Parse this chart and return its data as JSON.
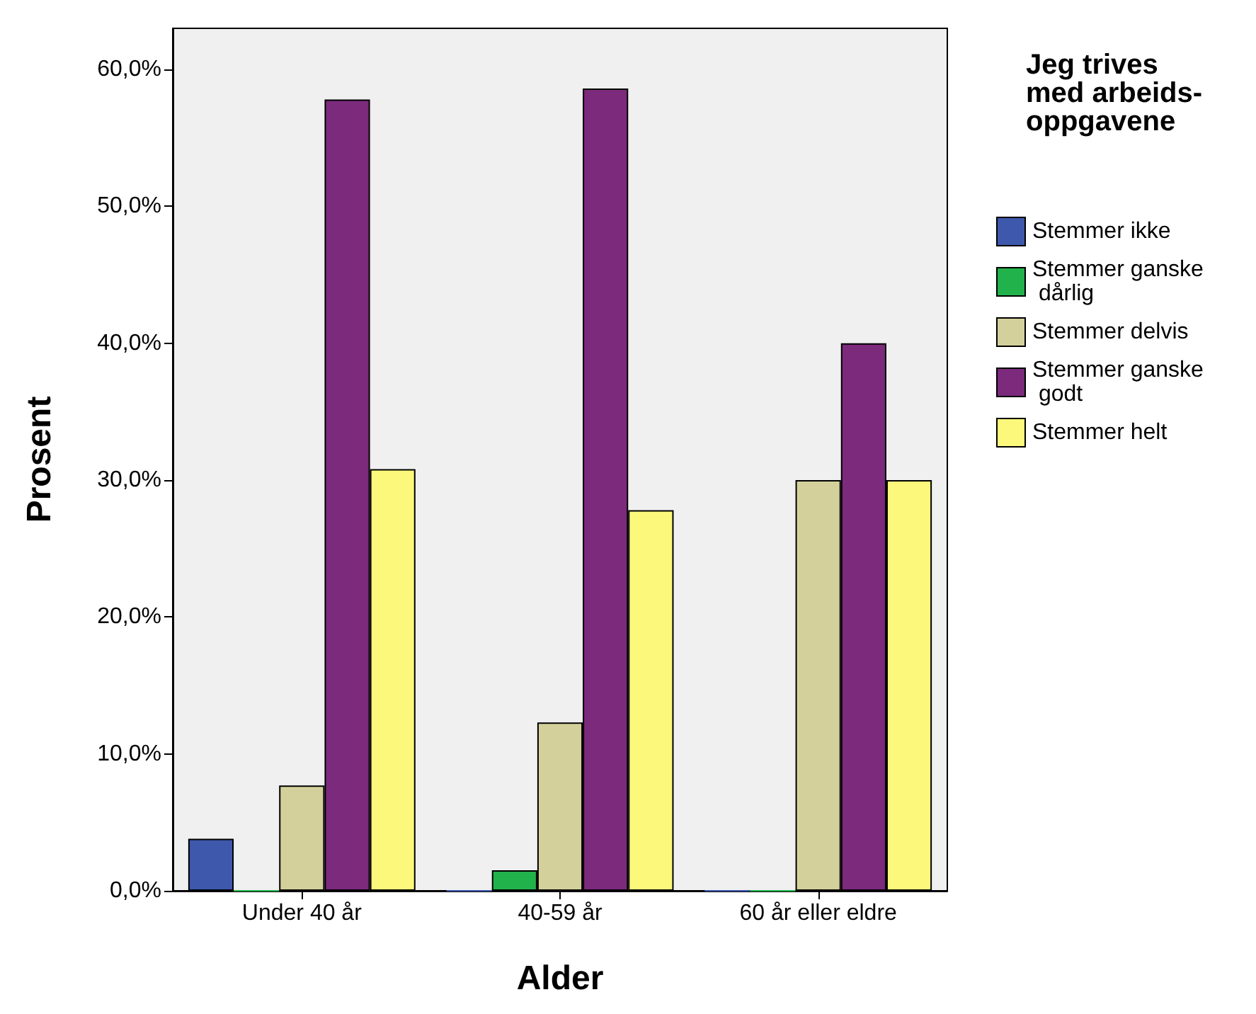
{
  "chart_data": {
    "type": "bar",
    "xlabel": "Alder",
    "ylabel": "Prosent",
    "legend_title": "Jeg trives med arbeids-oppgavene",
    "categories": [
      "Under 40 år",
      "40-59 år",
      "60 år eller eldre"
    ],
    "series": [
      {
        "name": "Stemmer ikke",
        "color": "#3e58ac",
        "values": [
          3.8,
          0,
          0
        ]
      },
      {
        "name": "Stemmer ganske dårlig",
        "color": "#22b24c",
        "values": [
          0,
          1.5,
          0
        ]
      },
      {
        "name": "Stemmer delvis",
        "color": "#d4d09c",
        "values": [
          7.7,
          12.3,
          30.0
        ]
      },
      {
        "name": "Stemmer ganske godt",
        "color": "#7b2a7c",
        "values": [
          57.8,
          58.6,
          40.0
        ]
      },
      {
        "name": "Stemmer helt",
        "color": "#fbf87c",
        "values": [
          30.8,
          27.8,
          30.0
        ]
      }
    ],
    "ylim": [
      0,
      63
    ],
    "yticks": [
      {
        "value": 0,
        "label": "0,0%"
      },
      {
        "value": 10,
        "label": "10,0%"
      },
      {
        "value": 20,
        "label": "20,0%"
      },
      {
        "value": 30,
        "label": "30,0%"
      },
      {
        "value": 40,
        "label": "40,0%"
      },
      {
        "value": 50,
        "label": "50,0%"
      },
      {
        "value": 60,
        "label": "60,0%"
      }
    ],
    "grid": false,
    "legend": "right"
  }
}
